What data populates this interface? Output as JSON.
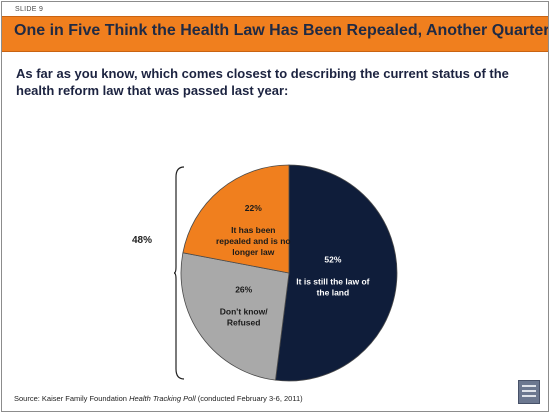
{
  "slide": {
    "label": "SLIDE 9",
    "title": "One in Five Think the Health Law Has Been Repealed, Another Quarter Not Sure",
    "question": "As far as you know, which comes closest to describing the current status of the health reform law that was passed last year:",
    "source_prefix": "Source: Kaiser Family Foundation ",
    "source_italic": "Health Tracking Poll",
    "source_suffix": " (conducted February 3-6, 2011)",
    "bracket_label": "48%"
  },
  "colors": {
    "title_bar": "#f07f1e",
    "title_text": "#1f2a44",
    "law_of_land": "#0f1d3a",
    "repealed": "#f07f1e",
    "dont_know": "#a9a9a9"
  },
  "chart_data": {
    "type": "pie",
    "title": "",
    "slices": [
      {
        "label_lines": [
          "It is still the law of",
          "the land"
        ],
        "value": 52,
        "value_label": "52%",
        "color": "#0f1d3a",
        "text_color": "#ffffff"
      },
      {
        "label_lines": [
          "Don't know/",
          "Refused"
        ],
        "value": 26,
        "value_label": "26%",
        "color": "#a9a9a9",
        "text_color": "#1a1a1a"
      },
      {
        "label_lines": [
          "It has been",
          "repealed and is no",
          "longer law"
        ],
        "value": 22,
        "value_label": "22%",
        "color": "#f07f1e",
        "text_color": "#1a1a1a"
      }
    ],
    "bracket": {
      "covers": [
        "Don't know/ Refused",
        "It has been repealed and is no longer law"
      ],
      "label": "48%"
    }
  }
}
